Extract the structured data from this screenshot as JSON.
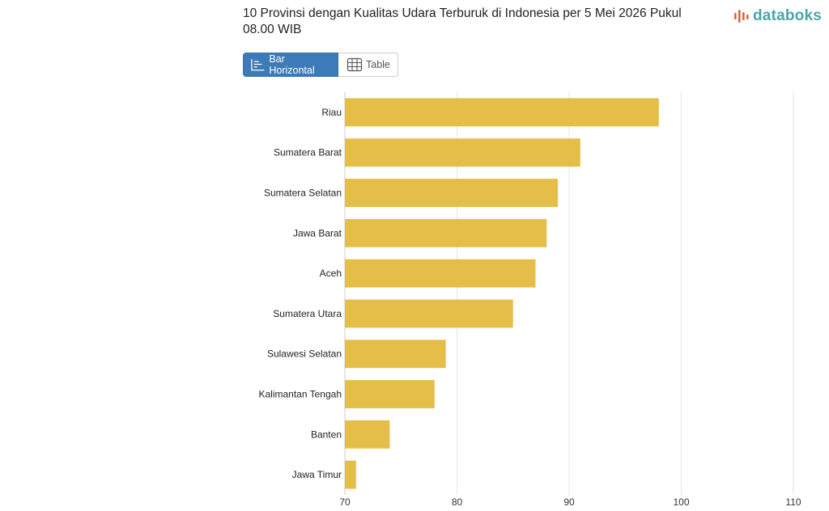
{
  "header": {
    "title": "10 Provinsi dengan Kualitas Udara Terburuk di Indonesia per 5 Mei 2026 Pukul 08.00 WIB",
    "logo_text": "databoks"
  },
  "toolbar": {
    "bar_label": "Bar Horizontal",
    "table_label": "Table"
  },
  "colors": {
    "bar": "#e5be4a",
    "grid": "#e6e6e6",
    "accent": "#3d7ab8",
    "logo": "#4aa6a4",
    "logo_mark": "#e0643a"
  },
  "chart_data": {
    "type": "bar",
    "orientation": "horizontal",
    "categories": [
      "Riau",
      "Sumatera Barat",
      "Sumatera Selatan",
      "Jawa Barat",
      "Aceh",
      "Sumatera Utara",
      "Sulawesi Selatan",
      "Kalimantan Tengah",
      "Banten",
      "Jawa Timur"
    ],
    "values": [
      98,
      91,
      89,
      88,
      87,
      85,
      79,
      78,
      74,
      71
    ],
    "xlim": [
      70,
      110
    ],
    "xticks": [
      70,
      80,
      90,
      100,
      110
    ],
    "grid": true,
    "legend": "none"
  }
}
